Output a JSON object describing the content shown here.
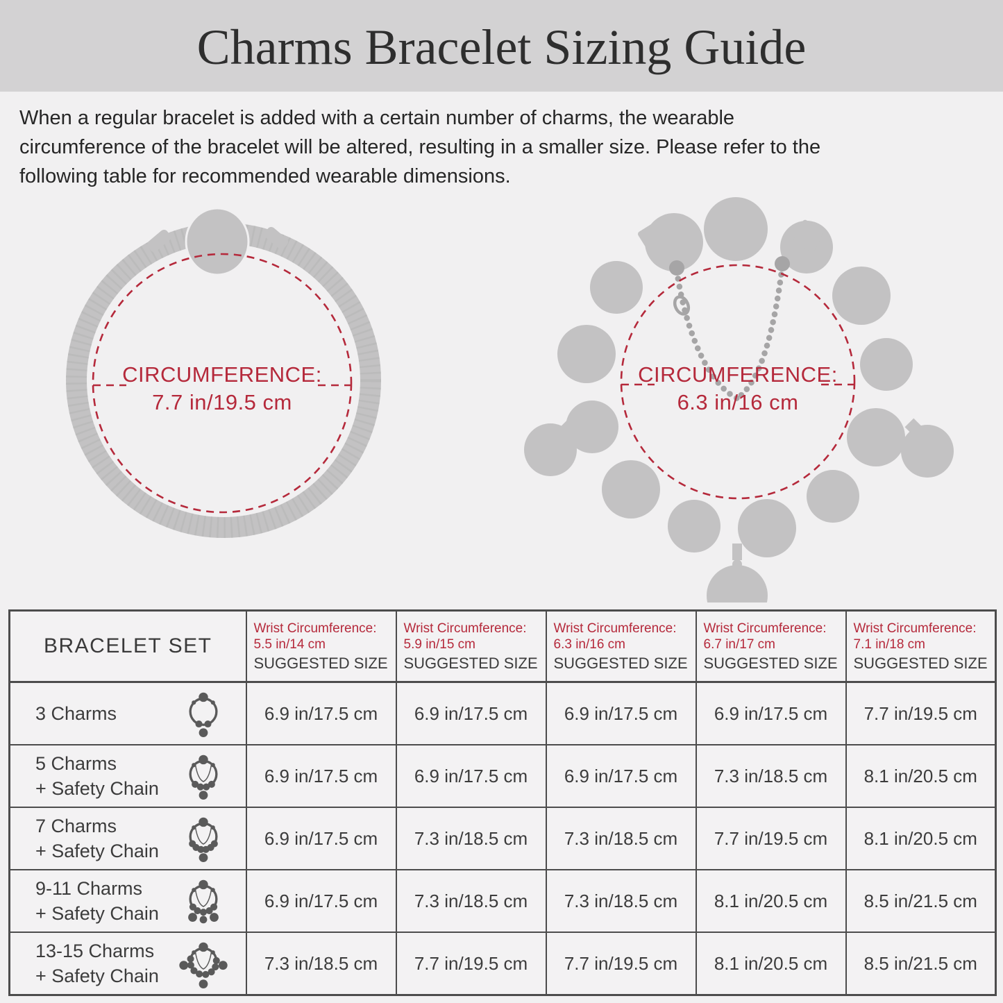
{
  "header": {
    "title": "Charms Bracelet Sizing Guide"
  },
  "intro": {
    "lines": [
      "When a regular bracelet is added with a certain number of charms, the wearable",
      "circumference of the bracelet will be altered, resulting in a smaller size. Please refer to the",
      "following table for recommended wearable dimensions."
    ]
  },
  "figures": {
    "plain_bracelet": {
      "circumference_label": "CIRCUMFERENCE:",
      "circumference_value": "7.7 in/19.5 cm"
    },
    "charm_bracelet": {
      "circumference_label": "CIRCUMFERENCE:",
      "circumference_value": "6.3 in/16 cm"
    }
  },
  "table": {
    "corner_header": "BRACELET SET",
    "columns": [
      {
        "wrist_line1": "Wrist Circumference:",
        "wrist_line2": "5.5 in/14 cm",
        "suggested": "SUGGESTED SIZE"
      },
      {
        "wrist_line1": "Wrist Circumference:",
        "wrist_line2": "5.9 in/15 cm",
        "suggested": "SUGGESTED SIZE"
      },
      {
        "wrist_line1": "Wrist Circumference:",
        "wrist_line2": "6.3 in/16 cm",
        "suggested": "SUGGESTED SIZE"
      },
      {
        "wrist_line1": "Wrist Circumference:",
        "wrist_line2": "6.7 in/17 cm",
        "suggested": "SUGGESTED SIZE"
      },
      {
        "wrist_line1": "Wrist Circumference:",
        "wrist_line2": "7.1 in/18 cm",
        "suggested": "SUGGESTED SIZE"
      }
    ],
    "rows": [
      {
        "label_lines": [
          "3 Charms"
        ],
        "icon": {
          "charms": "3 charms",
          "safety_chain": false
        },
        "values": [
          "6.9 in/17.5 cm",
          "6.9 in/17.5 cm",
          "6.9 in/17.5 cm",
          "6.9 in/17.5 cm",
          "7.7 in/19.5 cm"
        ]
      },
      {
        "label_lines": [
          "5 Charms",
          "+ Safety Chain"
        ],
        "icon": {
          "charms": "5 charms",
          "safety_chain": true
        },
        "values": [
          "6.9 in/17.5 cm",
          "6.9 in/17.5 cm",
          "6.9 in/17.5 cm",
          "7.3 in/18.5 cm",
          "8.1 in/20.5 cm"
        ]
      },
      {
        "label_lines": [
          "7 Charms",
          "+ Safety Chain"
        ],
        "icon": {
          "charms": "7 charms",
          "safety_chain": true
        },
        "values": [
          "6.9 in/17.5 cm",
          "7.3 in/18.5 cm",
          "7.3 in/18.5 cm",
          "7.7 in/19.5 cm",
          "8.1 in/20.5 cm"
        ]
      },
      {
        "label_lines": [
          "9-11 Charms",
          "+ Safety Chain"
        ],
        "icon": {
          "charms": "9-11 charms",
          "safety_chain": true
        },
        "values": [
          "6.9 in/17.5 cm",
          "7.3 in/18.5 cm",
          "7.3 in/18.5 cm",
          "8.1 in/20.5 cm",
          "8.5 in/21.5 cm"
        ]
      },
      {
        "label_lines": [
          "13-15 Charms",
          "+ Safety Chain"
        ],
        "icon": {
          "charms": "13-15 charms",
          "safety_chain": true
        },
        "values": [
          "7.3 in/18.5 cm",
          "7.7 in/19.5 cm",
          "7.7 in/19.5 cm",
          "8.1 in/20.5 cm",
          "8.5 in/21.5 cm"
        ]
      }
    ]
  },
  "colors": {
    "accent_red": "#b5293b",
    "title_band_gray": "#d3d2d3",
    "page_background": "#f1f0f1",
    "bracelet_silhouette_gray": "#c3c2c3",
    "safety_chain_gray": "#a6a5a6",
    "table_border_gray": "#4c4c4c",
    "icon_gray": "#5a5a5a",
    "text_dark": "#2e2e2e"
  }
}
